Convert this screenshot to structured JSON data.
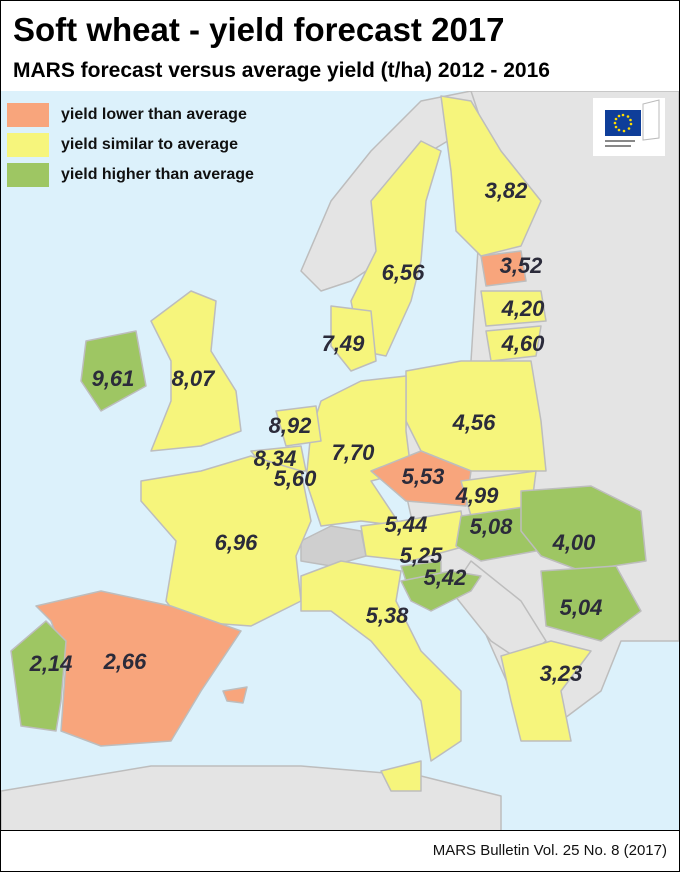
{
  "title": "Soft wheat - yield forecast 2017",
  "subtitle": "MARS forecast versus average yield (t/ha) 2012 - 2016",
  "legend": [
    {
      "label": "yield lower than average",
      "color": "#f8a57c"
    },
    {
      "label": "yield similar to average",
      "color": "#f6f57c"
    },
    {
      "label": "yield higher than average",
      "color": "#9ec663"
    }
  ],
  "logo_text": "European Commission",
  "footer": "MARS Bulletin Vol. 25 No. 8 (2017)",
  "colors": {
    "sea": "#dcf1fb",
    "nonEU": "#e4e4e4",
    "border": "#bdbdbd"
  },
  "values": [
    {
      "id": "fi",
      "value": "3,82"
    },
    {
      "id": "se",
      "value": "6,56"
    },
    {
      "id": "ee",
      "value": "3,52"
    },
    {
      "id": "lv",
      "value": "4,20"
    },
    {
      "id": "lt",
      "value": "4,60"
    },
    {
      "id": "dk",
      "value": "7,49"
    },
    {
      "id": "ie",
      "value": "9,61"
    },
    {
      "id": "uk",
      "value": "8,07"
    },
    {
      "id": "nl",
      "value": "8,92"
    },
    {
      "id": "pl",
      "value": "4,56"
    },
    {
      "id": "be",
      "value": "8,34"
    },
    {
      "id": "de",
      "value": "7,70"
    },
    {
      "id": "cz",
      "value": "5,53"
    },
    {
      "id": "lu",
      "value": "5,60"
    },
    {
      "id": "sk",
      "value": "4,99"
    },
    {
      "id": "at",
      "value": "5,44"
    },
    {
      "id": "hu",
      "value": "5,08"
    },
    {
      "id": "ro",
      "value": "4,00"
    },
    {
      "id": "fr",
      "value": "6,96"
    },
    {
      "id": "si",
      "value": "5,25"
    },
    {
      "id": "hr",
      "value": "5,42"
    },
    {
      "id": "bg",
      "value": "5,04"
    },
    {
      "id": "it",
      "value": "5,38"
    },
    {
      "id": "pt",
      "value": "2,14"
    },
    {
      "id": "es",
      "value": "2,66"
    },
    {
      "id": "gr",
      "value": "3,23"
    }
  ]
}
